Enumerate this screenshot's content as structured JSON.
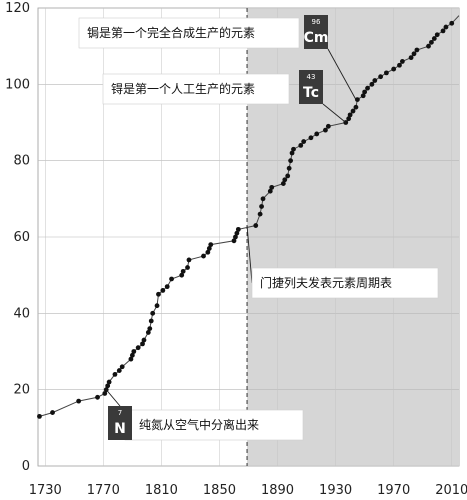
{
  "chart_data": {
    "type": "line",
    "title": "",
    "xlabel": "",
    "ylabel": "",
    "xlim": [
      1725,
      2015
    ],
    "ylim": [
      0,
      120
    ],
    "xticks": [
      "1730",
      "1770",
      "1810",
      "1850",
      "1890",
      "1930",
      "1970",
      "2010"
    ],
    "yticks": [
      "0",
      "20",
      "40",
      "60",
      "80",
      "100",
      "120"
    ],
    "grid": true,
    "x": [
      1726,
      1735,
      1753,
      1766,
      1771,
      1772,
      1773,
      1774,
      1778,
      1781,
      1783,
      1789,
      1790,
      1791,
      1794,
      1797,
      1798,
      1801,
      1802,
      1803,
      1804,
      1807,
      1808,
      1811,
      1814,
      1817,
      1824,
      1825,
      1828,
      1829,
      1839,
      1842,
      1843,
      1844,
      1860,
      1861,
      1862,
      1863,
      1875,
      1878,
      1879,
      1880,
      1885,
      1886,
      1894,
      1895,
      1897,
      1898,
      1899,
      1900,
      1901,
      1906,
      1908,
      1913,
      1917,
      1923,
      1925,
      1937,
      1939,
      1940,
      1942,
      1944,
      1945,
      1949,
      1950,
      1952,
      1955,
      1957,
      1961,
      1965,
      1970,
      1974,
      1976,
      1982,
      1984,
      1986,
      1994,
      1996,
      1998,
      2000,
      2004,
      2006,
      2010,
      2015
    ],
    "y": [
      13,
      14,
      17,
      18,
      19,
      20,
      21,
      22,
      24,
      25,
      26,
      28,
      29,
      30,
      31,
      32,
      33,
      35,
      36,
      38,
      40,
      42,
      45,
      46,
      47,
      49,
      50,
      51,
      52,
      54,
      55,
      56,
      57,
      58,
      59,
      60,
      61,
      62,
      63,
      66,
      68,
      70,
      72,
      73,
      74,
      75,
      76,
      78,
      80,
      82,
      83,
      84,
      85,
      86,
      87,
      88,
      89,
      90,
      91,
      92,
      93,
      94,
      96,
      97,
      98,
      99,
      100,
      101,
      102,
      103,
      104,
      105,
      106,
      107,
      108,
      109,
      110,
      111,
      112,
      113,
      114,
      115,
      116,
      118
    ],
    "shaded_region": {
      "from_x": 1869,
      "to_x": 2015,
      "color": "#d6d6d6"
    },
    "vertical_line": {
      "x": 1869,
      "style": "dashed"
    },
    "annotations": [
      {
        "text": "锔是第一个完全合成生产的元素",
        "badge_number": "96",
        "badge_symbol": "Cm",
        "x": 1944,
        "y": 96
      },
      {
        "text": "锝是第一个人工生产的元素",
        "badge_number": "43",
        "badge_symbol": "Tc",
        "x": 1937,
        "y": 90
      },
      {
        "text": "门捷列夫发表元素周期表",
        "x": 1869,
        "y": 63
      },
      {
        "text": "纯氮从空气中分离出来",
        "badge_number": "7",
        "badge_symbol": "N",
        "x": 1772,
        "y": 20
      }
    ],
    "colors": {
      "line": "#444444",
      "marker": "#111111",
      "badge_bg": "#3a3a3a"
    }
  }
}
